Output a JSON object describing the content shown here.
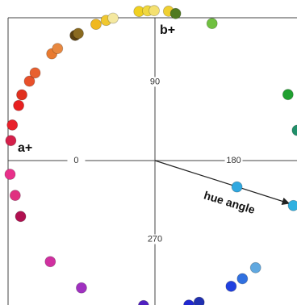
{
  "chart_data": {
    "type": "polar-scatter",
    "x": [
      7.9,
      14,
      22,
      26.3,
      32.3,
      36.2,
      46,
      49,
      57.5,
      58.9,
      66.6,
      70.8,
      73.6,
      83.9,
      87.2,
      89.7,
      95.2,
      98,
      112.6,
      153.6,
      168,
      198,
      197.8,
      226.8,
      233.5,
      238.8,
      252.7,
      256.8,
      274.5,
      300,
      316,
      337.4,
      346,
      354.6
    ],
    "values": [
      98,
      99,
      99,
      100,
      100,
      100,
      100,
      100,
      100,
      100,
      100,
      100,
      100,
      101,
      101,
      101,
      101,
      100,
      100,
      100,
      98,
      98,
      58,
      99,
      99,
      99,
      100,
      100,
      98,
      99,
      98,
      98,
      97,
      98
    ],
    "colors": [
      "#d4204a",
      "#e8202a",
      "#e82020",
      "#e0301e",
      "#e8502a",
      "#e86030",
      "#e87a30",
      "#e88840",
      "#5a4010",
      "#8a6a20",
      "#f0b820",
      "#f0c830",
      "#f4e8a0",
      "#f0d020",
      "#f0d840",
      "#f4e070",
      "#f0d030",
      "#507a20",
      "#70c040",
      "#20a030",
      "#20906a",
      "#30b0e0",
      "#30a8e0",
      "#60a8e0",
      "#3070e0",
      "#2040e0",
      "#2030b0",
      "#2028d0",
      "#5020c0",
      "#a030c0",
      "#d030a0",
      "#b01050",
      "#e03080",
      "#e8308a"
    ],
    "xticks": [
      0,
      90,
      180,
      270
    ],
    "rlim": [
      0,
      100
    ],
    "labels": {
      "a": "a+",
      "b": "b+",
      "arrow": "hue angle"
    }
  }
}
